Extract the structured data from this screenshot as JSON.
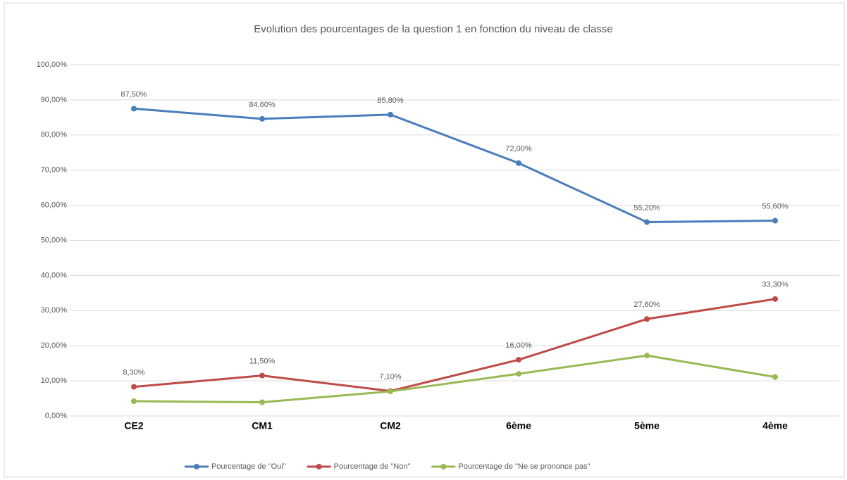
{
  "chart_data": {
    "type": "line",
    "title": "Evolution des pourcentages de la question 1 en fonction du niveau de classe",
    "categories": [
      "CE2",
      "CM1",
      "CM2",
      "6ème",
      "5ème",
      "4ème"
    ],
    "series": [
      {
        "name": "Pourcentage de \"Oui\"",
        "color": "#4a7ebb",
        "values": [
          87.5,
          84.6,
          85.8,
          72.0,
          55.2,
          55.6
        ],
        "value_labels": [
          "87,50%",
          "84,60%",
          "85,80%",
          "72,00%",
          "55,20%",
          "55,60%"
        ]
      },
      {
        "name": "Pourcentage de \"Non\"",
        "color": "#be4b48",
        "values": [
          8.3,
          11.5,
          7.1,
          16.0,
          27.6,
          33.3
        ],
        "value_labels": [
          "8,30%",
          "11,50%",
          "7,10%",
          "16,00%",
          "27,60%",
          "33,30%"
        ]
      },
      {
        "name": "Pourcentage de \"Ne se prononce pas\"",
        "color": "#98b954",
        "values": [
          4.2,
          3.9,
          7.0,
          12.0,
          17.2,
          11.1
        ]
      }
    ],
    "ylim": [
      0,
      100
    ],
    "yticks": [
      {
        "value": 0,
        "label": "0,00%"
      },
      {
        "value": 10,
        "label": "10,00%"
      },
      {
        "value": 20,
        "label": "20,00%"
      },
      {
        "value": 30,
        "label": "30,00%"
      },
      {
        "value": 40,
        "label": "40,00%"
      },
      {
        "value": 50,
        "label": "50,00%"
      },
      {
        "value": 60,
        "label": "60,00%"
      },
      {
        "value": 70,
        "label": "70,00%"
      },
      {
        "value": 80,
        "label": "80,00%"
      },
      {
        "value": 90,
        "label": "90,00%"
      },
      {
        "value": 100,
        "label": "100,00%"
      }
    ],
    "grid": true
  }
}
